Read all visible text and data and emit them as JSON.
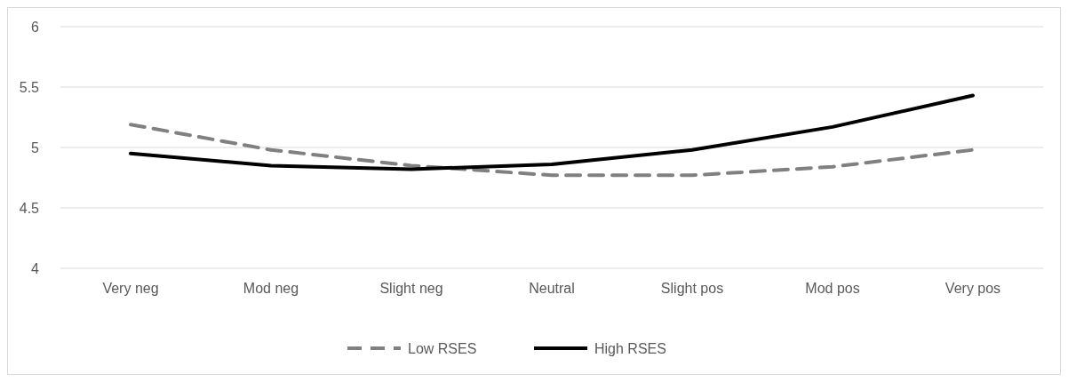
{
  "chart_data": {
    "type": "line",
    "categories": [
      "Very neg",
      "Mod neg",
      "Slight neg",
      "Neutral",
      "Slight pos",
      "Mod pos",
      "Very pos"
    ],
    "series": [
      {
        "name": "Low RSES",
        "color": "#808080",
        "line_style": "dashed",
        "values": [
          5.19,
          4.98,
          4.85,
          4.77,
          4.77,
          4.84,
          4.98
        ]
      },
      {
        "name": "High RSES",
        "color": "#000000",
        "line_style": "solid",
        "values": [
          4.95,
          4.85,
          4.82,
          4.86,
          4.98,
          5.17,
          5.43
        ]
      }
    ],
    "ylim": [
      4,
      6
    ],
    "yticks": [
      4,
      4.5,
      5,
      5.5,
      6
    ],
    "grid": "y",
    "legend": "bottom",
    "marker": "none"
  }
}
